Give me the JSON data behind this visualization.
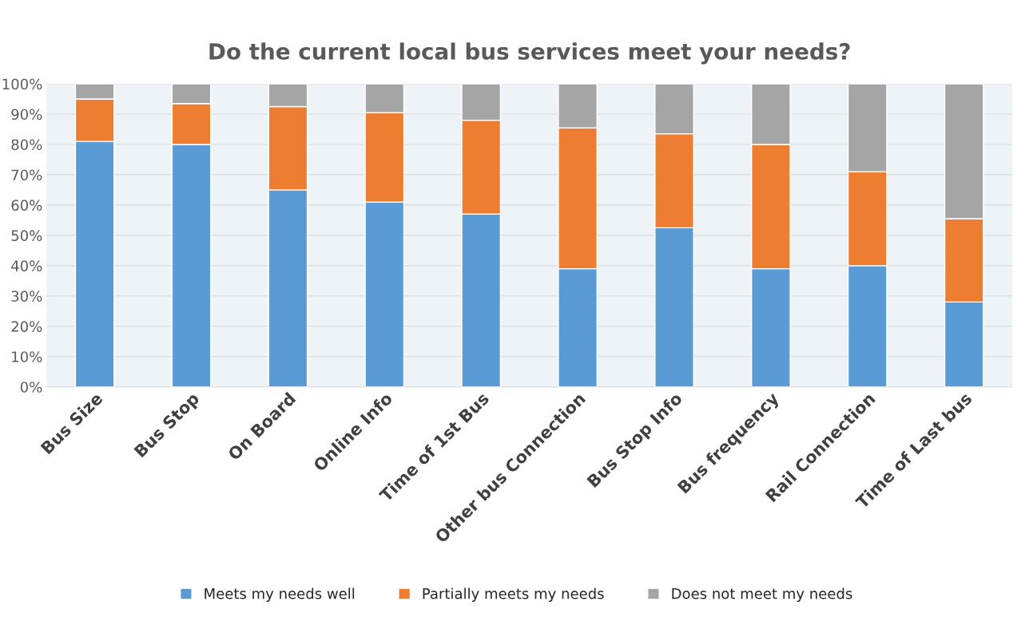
{
  "chart_data": {
    "type": "bar",
    "stacked": true,
    "title": "Do the current local bus services meet your needs?",
    "categories": [
      "Bus Size",
      "Bus Stop",
      "On Board",
      "Online Info",
      "Time of 1st Bus",
      "Other bus Connection",
      "Bus Stop Info",
      "Bus frequency",
      "Rail Connection",
      "Time of Last bus"
    ],
    "series": [
      {
        "name": "Meets my needs well",
        "color": "#5b9bd5",
        "values": [
          81,
          80,
          65,
          61,
          57,
          39,
          52.5,
          39,
          40,
          28
        ]
      },
      {
        "name": "Partially meets my needs",
        "color": "#ed7d31",
        "values": [
          14,
          13.5,
          27.5,
          29.5,
          31,
          46.5,
          31,
          41,
          31,
          27.5
        ]
      },
      {
        "name": "Does not meet my needs",
        "color": "#a5a5a5",
        "values": [
          5,
          6.5,
          7.5,
          9.5,
          12,
          14.5,
          16.5,
          20,
          29,
          44.5
        ]
      }
    ],
    "ylim": [
      0,
      100
    ],
    "yticks": [
      {
        "value": 0,
        "label": "0%"
      },
      {
        "value": 10,
        "label": "10%"
      },
      {
        "value": 20,
        "label": "20%"
      },
      {
        "value": 30,
        "label": "30%"
      },
      {
        "value": 40,
        "label": "40%"
      },
      {
        "value": 50,
        "label": "50%"
      },
      {
        "value": 60,
        "label": "60%"
      },
      {
        "value": 70,
        "label": "70%"
      },
      {
        "value": 80,
        "label": "80%"
      },
      {
        "value": 90,
        "label": "90%"
      },
      {
        "value": 100,
        "label": "100%"
      }
    ],
    "grid": "y",
    "legend": "bottom"
  }
}
